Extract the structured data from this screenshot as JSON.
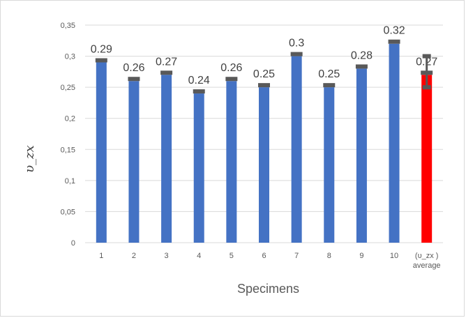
{
  "chart_data": {
    "type": "bar",
    "title": "",
    "xlabel": "Specimens",
    "ylabel": "υ_zx",
    "ylim": [
      0,
      0.35
    ],
    "y_ticks": [
      "0",
      "0,05",
      "0,1",
      "0,15",
      "0,2",
      "0,25",
      "0,3",
      "0,35"
    ],
    "grid": true,
    "categories": [
      "1",
      "2",
      "3",
      "4",
      "5",
      "6",
      "7",
      "8",
      "9",
      "10",
      "(υ_zx ) average"
    ],
    "category_lines": [
      [
        "1"
      ],
      [
        "2"
      ],
      [
        "3"
      ],
      [
        "4"
      ],
      [
        "5"
      ],
      [
        "6"
      ],
      [
        "7"
      ],
      [
        "8"
      ],
      [
        "9"
      ],
      [
        "10"
      ],
      [
        "(υ_zx )",
        "average"
      ]
    ],
    "values": [
      0.29,
      0.26,
      0.27,
      0.24,
      0.26,
      0.25,
      0.3,
      0.25,
      0.28,
      0.32,
      0.27
    ],
    "data_labels": [
      "0.29",
      "0.26",
      "0.27",
      "0.24",
      "0.26",
      "0.25",
      "0.3",
      "0.25",
      "0.28",
      "0.32",
      "0.27"
    ],
    "bar_colors": [
      "#4472c4",
      "#4472c4",
      "#4472c4",
      "#4472c4",
      "#4472c4",
      "#4472c4",
      "#4472c4",
      "#4472c4",
      "#4472c4",
      "#4472c4",
      "#ff0000"
    ],
    "error_bar_color": "#595959",
    "average_error_range": [
      0.25,
      0.3
    ]
  }
}
